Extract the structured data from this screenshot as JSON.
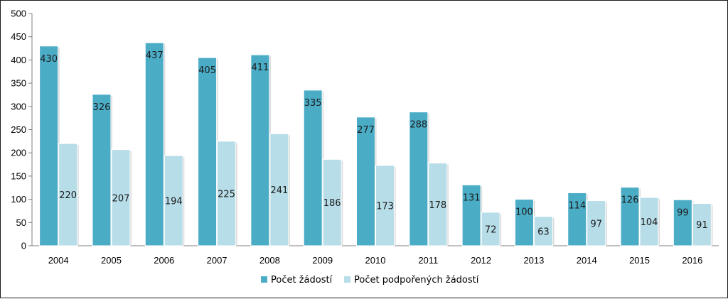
{
  "chart_data": {
    "type": "bar",
    "categories": [
      "2004",
      "2005",
      "2006",
      "2007",
      "2008",
      "2009",
      "2010",
      "2011",
      "2012",
      "2013",
      "2014",
      "2015",
      "2016"
    ],
    "series": [
      {
        "name": "Počet žádostí",
        "color": "#4bacc6",
        "values": [
          430,
          326,
          437,
          405,
          411,
          335,
          277,
          288,
          131,
          100,
          114,
          126,
          99
        ]
      },
      {
        "name": "Počet podpořených žádostí",
        "color": "#b7dde8",
        "values": [
          220,
          207,
          194,
          225,
          241,
          186,
          173,
          178,
          72,
          63,
          97,
          104,
          91
        ]
      }
    ],
    "title": "",
    "xlabel": "",
    "ylabel": "",
    "ylim": [
      0,
      500
    ],
    "yticks": [
      0,
      50,
      100,
      150,
      200,
      250,
      300,
      350,
      400,
      450,
      500
    ],
    "grid": false,
    "legend_position": "bottom"
  }
}
